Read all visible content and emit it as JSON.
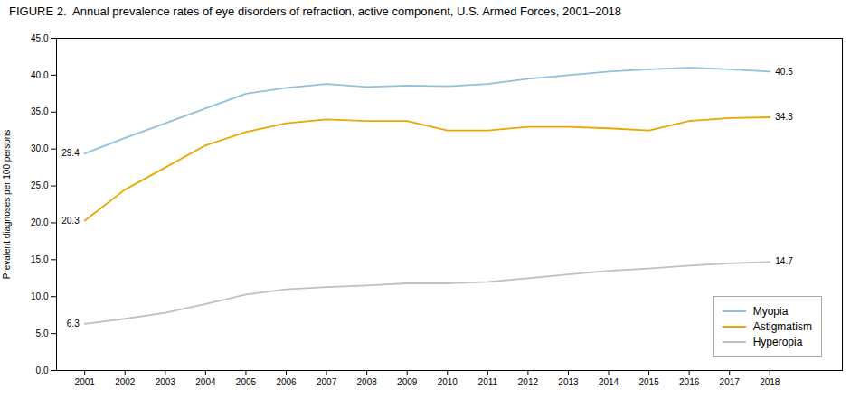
{
  "chart_data": {
    "type": "line",
    "title": "FIGURE 2.  Annual prevalence rates of eye disorders of refraction, active component, U.S. Armed Forces, 2001–2018",
    "ylabel": "Prevalent diagnoses per 100 persons",
    "x": [
      2001,
      2002,
      2003,
      2004,
      2005,
      2006,
      2007,
      2008,
      2009,
      2010,
      2011,
      2012,
      2013,
      2014,
      2015,
      2016,
      2017,
      2018
    ],
    "series": [
      {
        "name": "Myopia",
        "color": "#92C0DC",
        "values": [
          29.4,
          31.5,
          33.5,
          35.5,
          37.5,
          38.3,
          38.8,
          38.4,
          38.6,
          38.5,
          38.8,
          39.5,
          40.0,
          40.5,
          40.8,
          41.0,
          40.8,
          40.5
        ]
      },
      {
        "name": "Astigmatism",
        "color": "#E8A800",
        "values": [
          20.3,
          24.5,
          27.5,
          30.5,
          32.3,
          33.5,
          34.0,
          33.8,
          33.8,
          32.5,
          32.5,
          33.0,
          33.0,
          32.8,
          32.5,
          33.8,
          34.2,
          34.3
        ]
      },
      {
        "name": "Hyperopia",
        "color": "#C0C0C0",
        "values": [
          6.3,
          7.0,
          7.8,
          9.0,
          10.3,
          11.0,
          11.3,
          11.5,
          11.8,
          11.8,
          12.0,
          12.5,
          13.0,
          13.5,
          13.8,
          14.2,
          14.5,
          14.7
        ]
      }
    ],
    "xlim": [
      2000.3,
      2019.8
    ],
    "xticks": [
      2001,
      2002,
      2003,
      2004,
      2005,
      2006,
      2007,
      2008,
      2009,
      2010,
      2011,
      2012,
      2013,
      2014,
      2015,
      2016,
      2017,
      2018
    ],
    "ylim": [
      0,
      45
    ],
    "yticks": [
      {
        "value": 0,
        "label": "0.0"
      },
      {
        "value": 5,
        "label": "5.0"
      },
      {
        "value": 10,
        "label": "10.0"
      },
      {
        "value": 15,
        "label": "15.0"
      },
      {
        "value": 20,
        "label": "20.0"
      },
      {
        "value": 25,
        "label": "25.0"
      },
      {
        "value": 30,
        "label": "30.0"
      },
      {
        "value": 35,
        "label": "35.0"
      },
      {
        "value": 40,
        "label": "40.0"
      },
      {
        "value": 45,
        "label": "45.0"
      }
    ],
    "annotations": [
      {
        "text": "29.4",
        "x": 2001,
        "y": 29.4
      },
      {
        "text": "20.3",
        "x": 2001,
        "y": 20.3
      },
      {
        "text": "6.3",
        "x": 2001,
        "y": 6.3
      },
      {
        "text": "40.5",
        "x": 2018,
        "y": 40.5
      },
      {
        "text": "34.3",
        "x": 2018,
        "y": 34.3
      },
      {
        "text": "14.7",
        "x": 2018,
        "y": 14.7
      }
    ],
    "grid": false,
    "legend": "lower right"
  }
}
